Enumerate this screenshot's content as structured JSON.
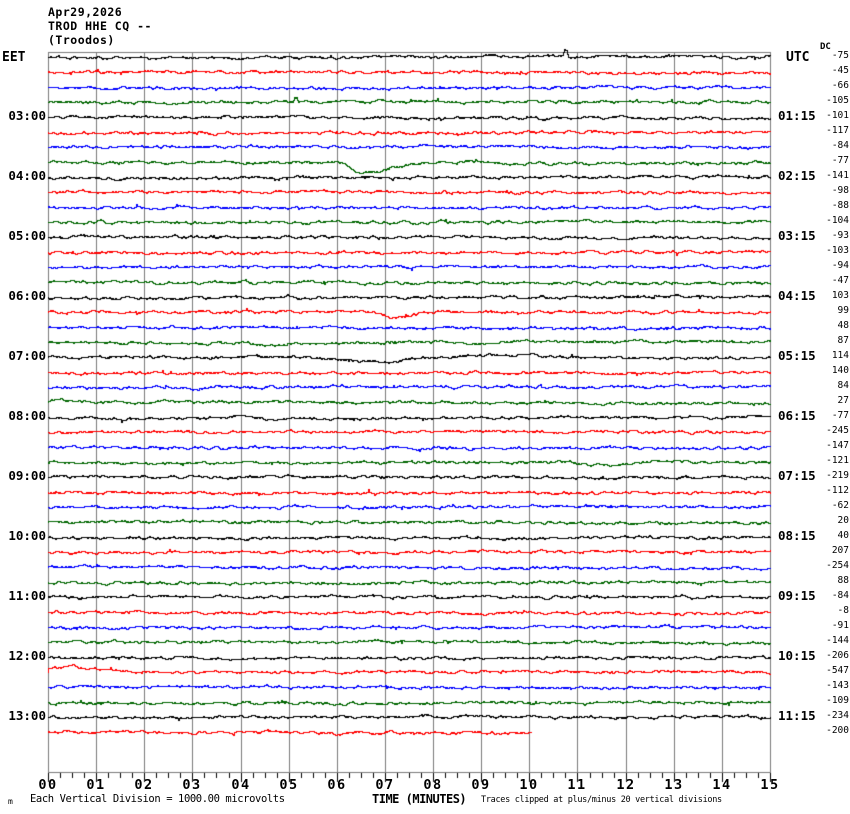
{
  "header": {
    "date": "Apr29,2026",
    "station": "TROD HHE CQ --",
    "location": "(Troodos)"
  },
  "axes": {
    "left_label": "EET",
    "right_label": "UTC",
    "dc_label": "DC"
  },
  "row_labels": [
    {
      "row": 5,
      "eet": "03:00",
      "utc": "01:15"
    },
    {
      "row": 9,
      "eet": "04:00",
      "utc": "02:15"
    },
    {
      "row": 13,
      "eet": "05:00",
      "utc": "03:15"
    },
    {
      "row": 17,
      "eet": "06:00",
      "utc": "04:15"
    },
    {
      "row": 21,
      "eet": "07:00",
      "utc": "05:15"
    },
    {
      "row": 25,
      "eet": "08:00",
      "utc": "06:15"
    },
    {
      "row": 29,
      "eet": "09:00",
      "utc": "07:15"
    },
    {
      "row": 33,
      "eet": "10:00",
      "utc": "08:15"
    },
    {
      "row": 37,
      "eet": "11:00",
      "utc": "09:15"
    },
    {
      "row": 41,
      "eet": "12:00",
      "utc": "10:15"
    },
    {
      "row": 45,
      "eet": "13:00",
      "utc": "11:15"
    }
  ],
  "x_tick_labels": [
    "00",
    "01",
    "02",
    "03",
    "04",
    "05",
    "06",
    "07",
    "08",
    "09",
    "10",
    "11",
    "12",
    "13",
    "14",
    "15"
  ],
  "footer": {
    "watermark": "m",
    "division_note": "Each Vertical Division = 1000.00 microvolts",
    "xlabel": "TIME (MINUTES)",
    "clip_note": "Traces clipped at plus/minus 20 vertical divisions"
  },
  "chart_data": {
    "type": "line",
    "title": "TROD HHE CQ -- (Troodos) helicorder, Apr29,2026",
    "xlabel": "TIME (MINUTES)",
    "x_range_minutes": [
      0,
      15
    ],
    "row_duration_minutes": 15,
    "rows": 46,
    "grid": "vertical-minute-lines",
    "legend": "none",
    "trace_color_cycle": [
      "#000000",
      "#ff0000",
      "#0000ff",
      "#006600"
    ],
    "grid_color": "#7a7a7a",
    "dc_offsets": [
      -75,
      -45,
      -66,
      -105,
      -101,
      -117,
      -84,
      -77,
      -141,
      -98,
      -88,
      -104,
      -93,
      -103,
      -94,
      -47,
      103,
      99,
      48,
      87,
      114,
      140,
      84,
      27,
      -77,
      -245,
      -147,
      -121,
      -219,
      -112,
      -62,
      20,
      40,
      207,
      -254,
      88,
      -84,
      -8,
      -91,
      -144,
      -206,
      -547,
      -143,
      -109,
      -234,
      -200
    ],
    "events": [
      {
        "row": 1,
        "kind": "spike",
        "minute": 10.74,
        "amp": 7
      },
      {
        "row": 4,
        "kind": "spike",
        "minute": 5.13,
        "amp": 4
      },
      {
        "row": 8,
        "kind": "dip",
        "start": 6.1,
        "bottom": 6.5,
        "end": 7.8,
        "depth": 11,
        "overshoot": 1.2,
        "overshoot_end": 9.4
      },
      {
        "row": 18,
        "kind": "dip",
        "start": 6.75,
        "bottom": 7.1,
        "end": 8.2,
        "depth": 6
      },
      {
        "row": 20,
        "kind": "dip",
        "start": 4.1,
        "bottom": 4.5,
        "end": 5.1,
        "depth": 3
      },
      {
        "row": 21,
        "kind": "dip",
        "start": 5.3,
        "bottom": 6.6,
        "end": 8.2,
        "depth": 5,
        "overshoot": 2.2,
        "overshoot_end": 10.8
      },
      {
        "row": 28,
        "kind": "dip",
        "start": 10.5,
        "bottom": 11.6,
        "end": 12.6,
        "depth": 3
      },
      {
        "row": 42,
        "kind": "decay",
        "rise_end": 0.5,
        "height": 6.5,
        "tau": 0.8
      },
      {
        "row": 46,
        "kind": "truncate",
        "end": 10.05
      }
    ]
  }
}
